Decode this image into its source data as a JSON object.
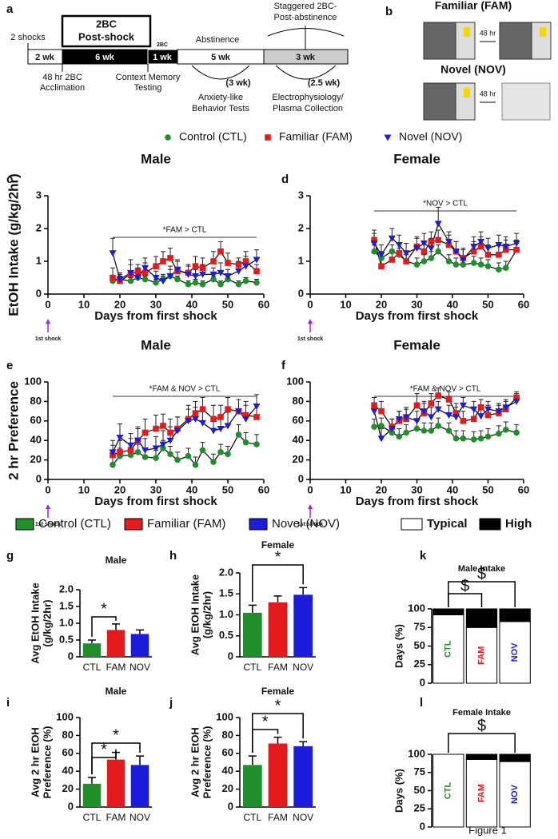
{
  "timeline": {
    "panel": "a",
    "shocks": "2 shocks",
    "box": [
      "2BC",
      "Post-shock"
    ],
    "segments": [
      "2 wk",
      "6 wk",
      "1 wk",
      "5 wk",
      "3 wk"
    ],
    "small": "2BC",
    "abstinence": "Abstinence",
    "staggered": [
      "Staggered 2BC-",
      "Post-abstinence"
    ],
    "acclimation": [
      "48 hr 2BC",
      "Acclimation"
    ],
    "context": [
      "Context Memory",
      "Testing"
    ],
    "anxiety_span": "(3 wk)",
    "anxiety": [
      "Anxiety-like",
      "Behavior Tests"
    ],
    "ephys_span": "(2.5 wk)",
    "ephys": [
      "Electrophysiology/",
      "Plasma Collection"
    ]
  },
  "diagram": {
    "panel": "b",
    "familiar": "Familiar (FAM)",
    "novel": "Novel (NOV)",
    "delay": "48 hr"
  },
  "chart_data": [
    {
      "type": "line",
      "panel": "c",
      "title": "Male",
      "x_label": "Days from first shock",
      "y_label": "EtOH Intake (g/kg/2hr)",
      "shock_label": "1st shock",
      "annotation": "*FAM > CTL",
      "xlim": [
        0,
        60
      ],
      "xticks": [
        0,
        10,
        20,
        30,
        40,
        50,
        60
      ],
      "ylim": [
        0,
        3
      ],
      "yticks": [
        0,
        1,
        2,
        3
      ],
      "x": [
        18,
        20,
        23,
        25,
        27,
        30,
        32,
        34,
        36,
        39,
        41,
        43,
        46,
        48,
        50,
        53,
        55,
        58
      ],
      "series": [
        {
          "name": "Control (CTL)",
          "color": "#1f8f2a",
          "marker": "circle",
          "values": [
            0.4,
            0.45,
            0.4,
            0.5,
            0.45,
            0.35,
            0.45,
            0.55,
            0.45,
            0.3,
            0.35,
            0.3,
            0.45,
            0.3,
            0.45,
            0.3,
            0.4,
            0.35
          ],
          "errors": [
            0.1,
            0.1,
            0.1,
            0.1,
            0.1,
            0.1,
            0.1,
            0.2,
            0.1,
            0.1,
            0.1,
            0.1,
            0.1,
            0.1,
            0.1,
            0.1,
            0.1,
            0.1
          ]
        },
        {
          "name": "Familiar (FAM)",
          "color": "#e41a1c",
          "marker": "square",
          "values": [
            0.5,
            0.4,
            0.6,
            0.7,
            0.65,
            0.85,
            1.0,
            1.1,
            0.7,
            0.65,
            0.85,
            0.8,
            1.0,
            1.3,
            0.95,
            0.9,
            1.0,
            0.7
          ],
          "errors": [
            0.3,
            0.2,
            0.3,
            0.2,
            0.3,
            0.3,
            0.3,
            0.3,
            0.3,
            0.2,
            0.3,
            0.3,
            0.3,
            0.3,
            0.3,
            0.2,
            0.3,
            0.2
          ]
        },
        {
          "name": "Novel (NOV)",
          "color": "#1c1cdc",
          "marker": "triangle",
          "values": [
            1.25,
            0.45,
            0.65,
            0.5,
            0.8,
            0.5,
            0.4,
            0.55,
            0.75,
            0.6,
            0.55,
            0.6,
            0.6,
            0.65,
            0.55,
            0.7,
            0.85,
            1.05
          ],
          "errors": [
            0.45,
            0.2,
            0.4,
            0.3,
            0.3,
            0.2,
            0.2,
            0.3,
            0.3,
            0.3,
            0.2,
            0.3,
            0.2,
            0.3,
            0.2,
            0.3,
            0.3,
            0.3
          ]
        }
      ]
    },
    {
      "type": "line",
      "panel": "d",
      "title": "Female",
      "x_label": "Days from first shock",
      "shock_label": "1st shock",
      "annotation": "*NOV > CTL",
      "xlim": [
        0,
        60
      ],
      "xticks": [
        0,
        10,
        20,
        30,
        40,
        50,
        60
      ],
      "ylim": [
        0,
        3
      ],
      "yticks": [
        0,
        1,
        2,
        3
      ],
      "x": [
        18,
        20,
        23,
        25,
        27,
        30,
        32,
        34,
        36,
        39,
        41,
        43,
        46,
        48,
        50,
        53,
        55,
        58
      ],
      "series": [
        {
          "name": "Control (CTL)",
          "color": "#1f8f2a",
          "marker": "circle",
          "values": [
            1.3,
            1.1,
            1.3,
            1.2,
            1.0,
            0.9,
            1.0,
            1.1,
            1.3,
            1.0,
            0.9,
            0.9,
            0.95,
            0.9,
            0.85,
            0.75,
            0.8,
            1.35
          ],
          "errors": [
            0.2,
            0.2,
            0.2,
            0.2,
            0.2,
            0.2,
            0.2,
            0.2,
            0.2,
            0.2,
            0.2,
            0.2,
            0.2,
            0.2,
            0.2,
            0.2,
            0.2,
            0.2
          ]
        },
        {
          "name": "Familiar (FAM)",
          "color": "#e41a1c",
          "marker": "square",
          "values": [
            1.65,
            0.85,
            1.05,
            1.25,
            1.0,
            1.45,
            1.3,
            1.6,
            1.65,
            1.5,
            1.3,
            1.1,
            1.3,
            1.45,
            1.2,
            1.2,
            1.35,
            1.35
          ],
          "errors": [
            0.3,
            0.2,
            0.3,
            0.3,
            0.3,
            0.3,
            0.3,
            0.3,
            0.3,
            0.3,
            0.3,
            0.3,
            0.3,
            0.3,
            0.3,
            0.3,
            0.3,
            0.3
          ]
        },
        {
          "name": "Novel (NOV)",
          "color": "#1c1cdc",
          "marker": "triangle",
          "values": [
            1.55,
            1.2,
            1.7,
            1.5,
            1.25,
            1.4,
            1.55,
            1.4,
            2.15,
            1.6,
            1.3,
            1.05,
            1.45,
            1.6,
            1.4,
            1.5,
            1.45,
            1.55
          ],
          "errors": [
            0.3,
            0.3,
            0.3,
            0.3,
            0.3,
            0.3,
            0.3,
            0.3,
            0.5,
            0.3,
            0.3,
            0.3,
            0.3,
            0.3,
            0.3,
            0.3,
            0.3,
            0.3
          ]
        }
      ]
    },
    {
      "type": "line",
      "panel": "e",
      "title": "Male",
      "x_label": "Days from first shock",
      "y_label": "2 hr Preference",
      "shock_label": "1st shock",
      "annotation": "*FAM & NOV > CTL",
      "xlim": [
        0,
        60
      ],
      "xticks": [
        0,
        10,
        20,
        30,
        40,
        50,
        60
      ],
      "ylim": [
        0,
        100
      ],
      "yticks": [
        0,
        20,
        40,
        60,
        80,
        100
      ],
      "x": [
        18,
        20,
        23,
        25,
        27,
        30,
        32,
        34,
        36,
        39,
        41,
        43,
        46,
        48,
        50,
        53,
        55,
        58
      ],
      "series": [
        {
          "name": "Control (CTL)",
          "color": "#1f8f2a",
          "marker": "circle",
          "values": [
            15,
            24,
            25,
            28,
            23,
            22,
            32,
            26,
            20,
            24,
            15,
            30,
            18,
            28,
            26,
            46,
            38,
            36
          ],
          "errors": [
            8,
            8,
            8,
            8,
            8,
            8,
            8,
            8,
            8,
            8,
            8,
            8,
            8,
            8,
            8,
            10,
            10,
            10
          ]
        },
        {
          "name": "Familiar (FAM)",
          "color": "#e41a1c",
          "marker": "square",
          "values": [
            25,
            28,
            30,
            40,
            48,
            52,
            55,
            48,
            52,
            62,
            68,
            72,
            62,
            64,
            72,
            70,
            66,
            64
          ],
          "errors": [
            10,
            12,
            12,
            12,
            14,
            14,
            12,
            14,
            12,
            14,
            12,
            12,
            14,
            12,
            12,
            12,
            14,
            12
          ]
        },
        {
          "name": "Novel (NOV)",
          "color": "#1c1cdc",
          "marker": "triangle",
          "values": [
            28,
            43,
            35,
            40,
            30,
            32,
            36,
            40,
            50,
            60,
            62,
            58,
            50,
            52,
            55,
            70,
            62,
            75
          ],
          "errors": [
            12,
            14,
            12,
            14,
            12,
            12,
            14,
            14,
            14,
            12,
            12,
            14,
            12,
            12,
            14,
            12,
            14,
            12
          ]
        }
      ]
    },
    {
      "type": "line",
      "panel": "f",
      "title": "Female",
      "x_label": "Days from first shock",
      "shock_label": "1st shock",
      "annotation": "*FAM & NOV > CTL",
      "xlim": [
        0,
        60
      ],
      "xticks": [
        0,
        10,
        20,
        30,
        40,
        50,
        60
      ],
      "ylim": [
        0,
        100
      ],
      "yticks": [
        0,
        20,
        40,
        60,
        80,
        100
      ],
      "x": [
        18,
        20,
        23,
        25,
        27,
        30,
        32,
        34,
        36,
        39,
        41,
        43,
        46,
        48,
        50,
        53,
        55,
        58
      ],
      "series": [
        {
          "name": "Control (CTL)",
          "color": "#1f8f2a",
          "marker": "circle",
          "values": [
            54,
            55,
            48,
            44,
            48,
            52,
            50,
            50,
            55,
            50,
            42,
            42,
            41,
            42,
            44,
            47,
            51,
            48
          ],
          "errors": [
            8,
            8,
            8,
            8,
            8,
            8,
            8,
            8,
            8,
            8,
            8,
            8,
            8,
            8,
            8,
            8,
            8,
            8
          ]
        },
        {
          "name": "Familiar (FAM)",
          "color": "#e41a1c",
          "marker": "square",
          "values": [
            76,
            70,
            54,
            60,
            62,
            76,
            68,
            78,
            86,
            82,
            68,
            60,
            62,
            74,
            66,
            68,
            72,
            84
          ],
          "errors": [
            8,
            10,
            8,
            10,
            10,
            12,
            10,
            10,
            8,
            8,
            10,
            10,
            10,
            8,
            10,
            8,
            8,
            6
          ]
        },
        {
          "name": "Novel (NOV)",
          "color": "#1c1cdc",
          "marker": "triangle",
          "values": [
            70,
            42,
            52,
            62,
            64,
            60,
            70,
            64,
            72,
            66,
            64,
            76,
            72,
            65,
            72,
            70,
            74,
            80
          ],
          "errors": [
            8,
            10,
            10,
            8,
            10,
            10,
            10,
            10,
            8,
            10,
            10,
            8,
            8,
            10,
            8,
            8,
            8,
            8
          ]
        }
      ]
    },
    {
      "type": "bar",
      "panel": "g",
      "title": "Male",
      "y_label": [
        "Avg EtOH Intake",
        "(g/kg/2hr)"
      ],
      "categories": [
        "CTL",
        "FAM",
        "NOV"
      ],
      "values": [
        0.4,
        0.8,
        0.68
      ],
      "errors": [
        0.1,
        0.18,
        0.12
      ],
      "colors": [
        "#1f8f2a",
        "#e41a1c",
        "#1c1cdc"
      ],
      "ylim": [
        0,
        2
      ],
      "yticks": [
        0,
        0.5,
        {
          "value": 1,
          "label": "1.0"
        },
        1.5,
        {
          "value": 2,
          "label": "2.0"
        }
      ],
      "significance": [
        {
          "pair": [
            "CTL",
            "FAM"
          ],
          "label": "*"
        }
      ]
    },
    {
      "type": "bar",
      "panel": "h",
      "title": "Female",
      "y_label": [
        "Avg EtOH Intake",
        "(g/kg/2hr)"
      ],
      "categories": [
        "CTL",
        "FAM",
        "NOV"
      ],
      "values": [
        1.05,
        1.3,
        1.48
      ],
      "errors": [
        0.18,
        0.15,
        0.17
      ],
      "colors": [
        "#1f8f2a",
        "#e41a1c",
        "#1c1cdc"
      ],
      "ylim": [
        0,
        2
      ],
      "yticks": [
        0,
        0.5,
        {
          "value": 1,
          "label": "1.0"
        },
        1.5,
        {
          "value": 2,
          "label": "2.0"
        }
      ],
      "significance": [
        {
          "pair": [
            "CTL",
            "NOV"
          ],
          "label": "*"
        }
      ]
    },
    {
      "type": "bar",
      "panel": "i",
      "title": "Male",
      "y_label": [
        "Avg 2 hr EtOH",
        "Preference (%)"
      ],
      "categories": [
        "CTL",
        "FAM",
        "NOV"
      ],
      "values": [
        26,
        53,
        47
      ],
      "errors": [
        7,
        8,
        10
      ],
      "colors": [
        "#1f8f2a",
        "#e41a1c",
        "#1c1cdc"
      ],
      "ylim": [
        0,
        100
      ],
      "yticks": [
        0,
        20,
        40,
        60,
        80,
        100
      ],
      "significance": [
        {
          "pair": [
            "CTL",
            "FAM"
          ],
          "label": "*"
        },
        {
          "pair": [
            "CTL",
            "NOV"
          ],
          "label": "*"
        }
      ]
    },
    {
      "type": "bar",
      "panel": "j",
      "title": "Female",
      "y_label": [
        "Avg 2 hr EtOH",
        "Preference (%)"
      ],
      "categories": [
        "CTL",
        "FAM",
        "NOV"
      ],
      "values": [
        47,
        71,
        68
      ],
      "errors": [
        10,
        7,
        5
      ],
      "colors": [
        "#1f8f2a",
        "#e41a1c",
        "#1c1cdc"
      ],
      "ylim": [
        0,
        100
      ],
      "yticks": [
        0,
        20,
        40,
        60,
        80,
        100
      ],
      "significance": [
        {
          "pair": [
            "CTL",
            "FAM"
          ],
          "label": "*"
        },
        {
          "pair": [
            "CTL",
            "NOV"
          ],
          "label": "*"
        }
      ]
    },
    {
      "type": "stacked",
      "panel": "k",
      "title": "Male Intake",
      "y_label": [
        "Days (%)"
      ],
      "categories": [
        "CTL",
        "FAM",
        "NOV"
      ],
      "category_colors": [
        "#1f8f2a",
        "#e41a1c",
        "#1c1cdc"
      ],
      "ylim": [
        0,
        100
      ],
      "yticks": [
        0,
        25,
        50,
        75,
        100
      ],
      "series": [
        {
          "name": "Typical",
          "color": "#ffffff",
          "values": [
            92,
            75,
            83
          ]
        },
        {
          "name": "High",
          "color": "#000000",
          "values": [
            8,
            25,
            17
          ]
        }
      ],
      "significance": [
        {
          "pair": [
            "CTL",
            "FAM"
          ],
          "label": "$"
        },
        {
          "pair": [
            "CTL",
            "NOV"
          ],
          "label": "$"
        }
      ]
    },
    {
      "type": "stacked",
      "panel": "l",
      "title": "Female Intake",
      "y_label": [
        "Days (%)"
      ],
      "categories": [
        "CTL",
        "FAM",
        "NOV"
      ],
      "category_colors": [
        "#1f8f2a",
        "#e41a1c",
        "#1c1cdc"
      ],
      "ylim": [
        0,
        100
      ],
      "yticks": [
        0,
        25,
        50,
        75,
        100
      ],
      "series": [
        {
          "name": "Typical",
          "color": "#ffffff",
          "values": [
            100,
            93,
            90
          ]
        },
        {
          "name": "High",
          "color": "#000000",
          "values": [
            0,
            7,
            10
          ]
        }
      ],
      "significance": [
        {
          "pair": [
            "CTL",
            "NOV"
          ],
          "label": "$"
        }
      ]
    }
  ],
  "caption": "Figure 1"
}
